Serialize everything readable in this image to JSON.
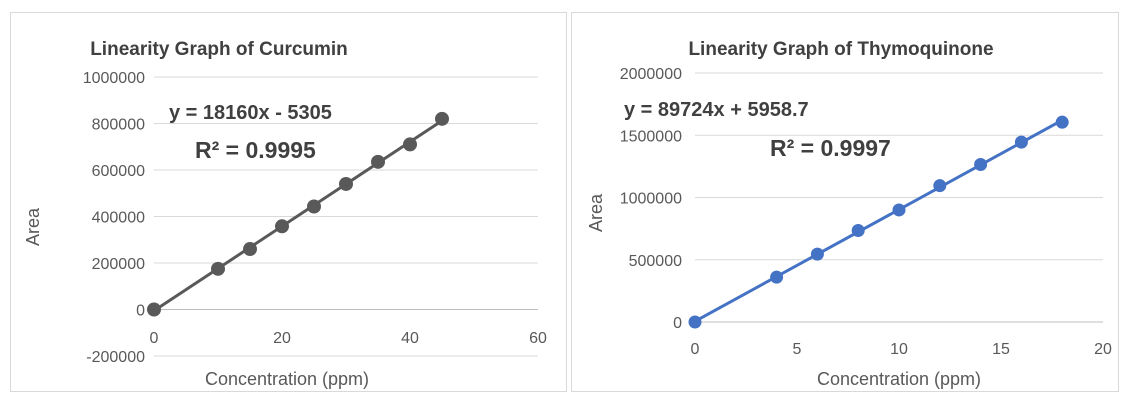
{
  "chart_data": [
    {
      "type": "scatter",
      "title": "Linearity Graph of Curcumin",
      "xlabel": "Concentration (ppm)",
      "ylabel": "Area",
      "xlim": [
        0,
        60
      ],
      "ylim": [
        -200000,
        1000000
      ],
      "x_ticks": [
        0,
        20,
        40,
        60
      ],
      "y_ticks": [
        -200000,
        0,
        200000,
        400000,
        600000,
        800000,
        1000000
      ],
      "x_tick_labels": [
        "0",
        "20",
        "40",
        "60"
      ],
      "y_tick_labels": [
        "-200000",
        "0",
        "200000",
        "400000",
        "600000",
        "800000",
        "1000000"
      ],
      "grid": "horizontal",
      "series": [
        {
          "x": [
            0,
            10,
            15,
            20,
            25,
            30,
            35,
            40,
            45
          ],
          "y": [
            0,
            175000,
            260000,
            358000,
            443000,
            540000,
            635000,
            710000,
            820000
          ],
          "color": "#595959",
          "trendline": {
            "slope": 18160,
            "intercept": -5305
          }
        }
      ],
      "annotations": {
        "equation": "y = 18160x - 5305",
        "r_squared": "R² = 0.9995"
      }
    },
    {
      "type": "scatter",
      "title": "Linearity Graph of Thymoquinone",
      "xlabel": "Concentration (ppm)",
      "ylabel": "Area",
      "xlim": [
        0,
        20
      ],
      "ylim": [
        0,
        2000000
      ],
      "x_ticks": [
        0,
        5,
        10,
        15,
        20
      ],
      "y_ticks": [
        0,
        500000,
        1000000,
        1500000,
        2000000
      ],
      "x_tick_labels": [
        "0",
        "5",
        "10",
        "15",
        "20"
      ],
      "y_tick_labels": [
        "0",
        "500000",
        "1000000",
        "1500000",
        "2000000"
      ],
      "grid": "horizontal",
      "series": [
        {
          "x": [
            0,
            4,
            6,
            8,
            10,
            12,
            14,
            16,
            18
          ],
          "y": [
            0,
            360000,
            545000,
            735000,
            900000,
            1095000,
            1265000,
            1445000,
            1605000
          ],
          "color": "#4472c4",
          "trendline": {
            "slope": 89724,
            "intercept": 5958.7
          }
        }
      ],
      "annotations": {
        "equation": "y = 89724x + 5958.7",
        "r_squared": "R² = 0.9997"
      }
    }
  ]
}
